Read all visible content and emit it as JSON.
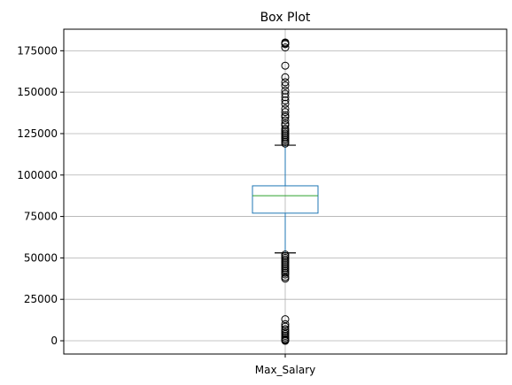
{
  "chart_data": {
    "type": "box",
    "title": "Box Plot",
    "categories": [
      "Max_Salary"
    ],
    "ylim": [
      -8000,
      188000
    ],
    "yticks": [
      0,
      25000,
      50000,
      75000,
      100000,
      125000,
      150000,
      175000
    ],
    "grid": true,
    "box": {
      "whisker_low": 53000,
      "q1": 77000,
      "median": 87500,
      "q3": 93500,
      "whisker_high": 118000
    },
    "outliers_high": [
      180000,
      179500,
      179000,
      177000,
      166000,
      159000,
      156000,
      154000,
      151000,
      149000,
      147000,
      145000,
      143000,
      140000,
      138000,
      136000,
      135000,
      133000,
      131000,
      130000,
      128000,
      127000,
      126000,
      125000,
      124000,
      123000,
      122000,
      121000,
      120000,
      119000
    ],
    "outliers_low": [
      52000,
      51000,
      50000,
      49000,
      48000,
      47000,
      46000,
      45000,
      44000,
      43000,
      42000,
      41000,
      40000,
      38500,
      37500,
      13000,
      10000,
      8500,
      7000,
      6000,
      5000,
      4000,
      3000,
      2000,
      1000,
      500,
      0
    ],
    "colors": {
      "box": "#1f77b4",
      "median": "#2ca02c",
      "whisker_cap": "#000000",
      "outlier": "#000000",
      "grid": "#b0b0b0",
      "axis": "#000000"
    }
  }
}
